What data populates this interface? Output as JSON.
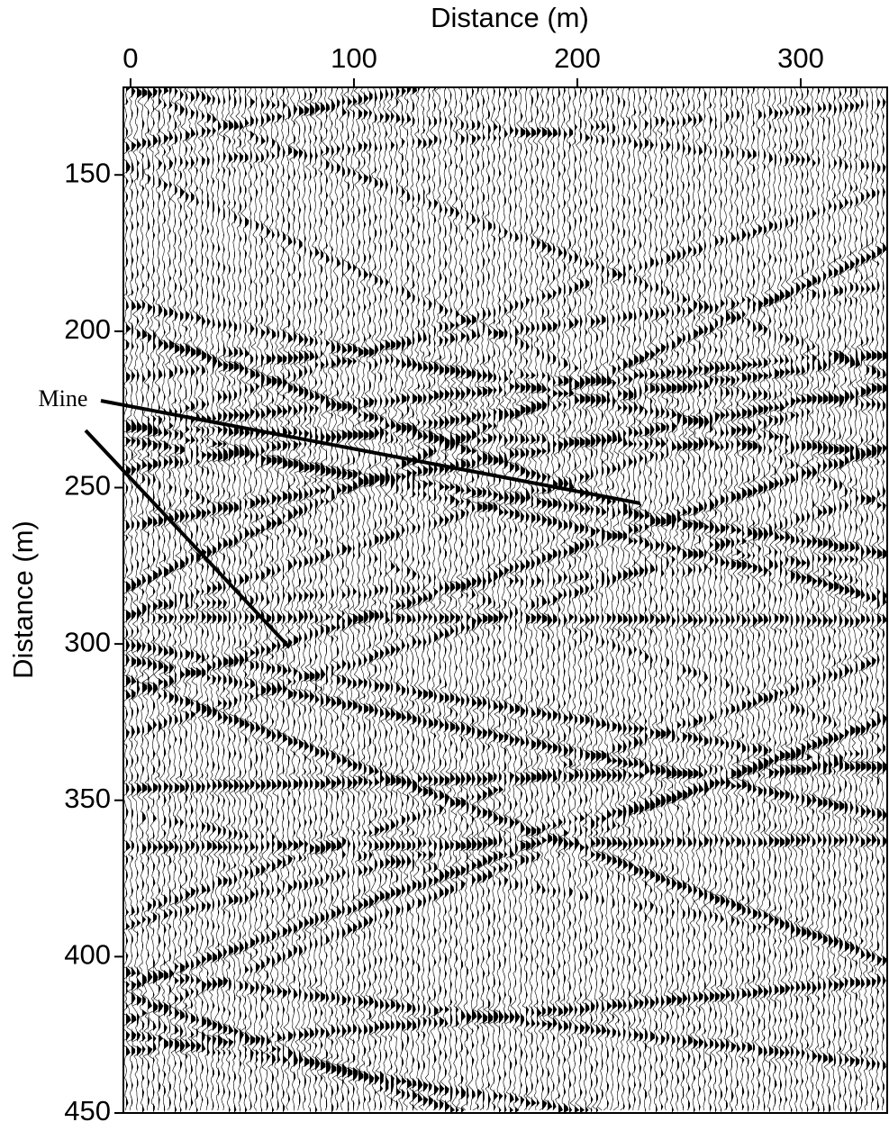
{
  "chart_data": {
    "type": "seismic-section",
    "x_label": "Distance (m)",
    "y_label": "Distance (m)",
    "xlim": [
      -3.2,
      338.7
    ],
    "xticks": [
      0,
      100,
      200,
      300
    ],
    "ylim": [
      122,
      450
    ],
    "yticks": [
      150,
      200,
      250,
      300,
      350,
      400,
      450
    ],
    "y_inverted": true,
    "annotation": {
      "text": "Mine",
      "targets": [
        {
          "x": 228,
          "y": 255
        },
        {
          "x": 71,
          "y": 301
        }
      ]
    }
  }
}
